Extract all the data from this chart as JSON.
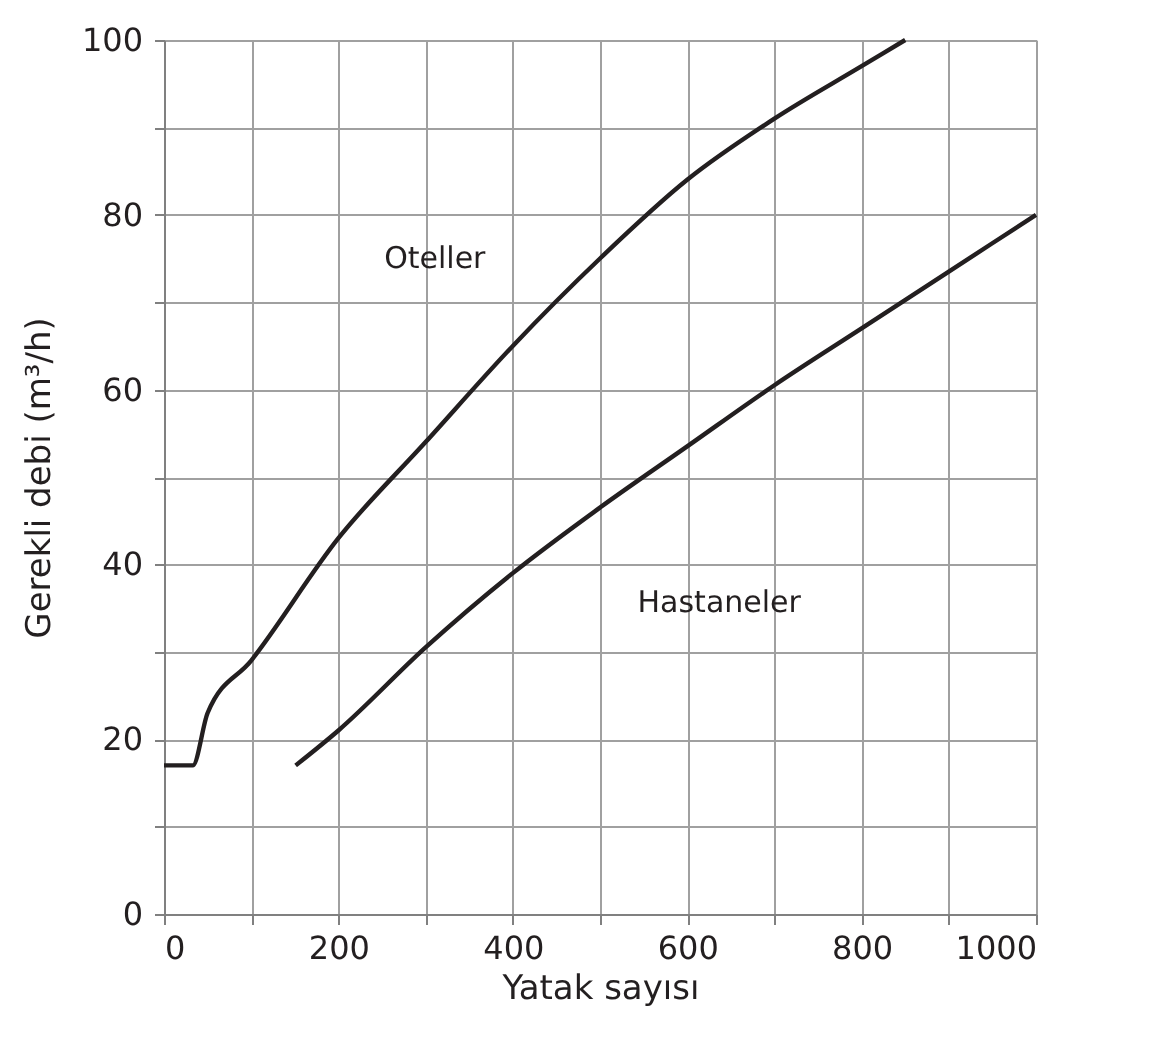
{
  "chart_data": {
    "type": "line",
    "xlabel": "Yatak sayısı",
    "ylabel": "Gerekli debi (m³/h)",
    "xlim": [
      0,
      1000
    ],
    "ylim": [
      0,
      100
    ],
    "xticks": [
      0,
      {
        "value": 100,
        "label": null
      },
      200,
      {
        "value": 300,
        "label": null
      },
      400,
      {
        "value": 500,
        "label": null
      },
      600,
      {
        "value": 700,
        "label": null
      },
      800,
      {
        "value": 900,
        "label": null
      },
      1000
    ],
    "yticks": [
      0,
      {
        "value": 10,
        "label": null
      },
      20,
      {
        "value": 30,
        "label": null
      },
      40,
      {
        "value": 50,
        "label": null
      },
      60,
      {
        "value": 70,
        "label": null
      },
      80,
      {
        "value": 90,
        "label": null
      },
      100
    ],
    "grid": true,
    "marker": "none",
    "line_style": "solid",
    "series": [
      {
        "name": "Oteller",
        "color": "#231f20",
        "x": [
          0,
          33,
          50,
          100,
          200,
          300,
          400,
          500,
          600,
          700,
          800,
          850
        ],
        "values": [
          17,
          17,
          23,
          29,
          43,
          54,
          65,
          75,
          84,
          91,
          97,
          100
        ]
      },
      {
        "name": "Hastaneler",
        "color": "#231f20",
        "x": [
          151,
          200,
          300,
          400,
          500,
          600,
          700,
          800,
          900,
          1000
        ],
        "values": [
          17,
          21,
          30.5,
          39,
          46.5,
          53.5,
          60.5,
          67,
          73.5,
          80
        ]
      }
    ]
  }
}
